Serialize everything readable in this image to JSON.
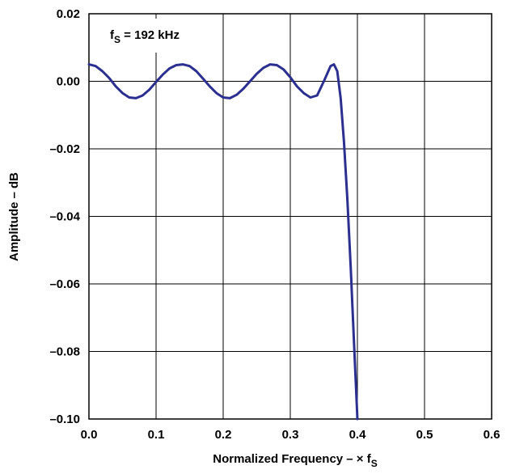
{
  "chart_data": {
    "type": "line",
    "title": "",
    "xlabel": {
      "main": "Normalized Frequency – × f",
      "sub": "S"
    },
    "ylabel": "Amplitude – dB",
    "xlim": [
      0.0,
      0.6
    ],
    "ylim": [
      -0.1,
      0.02
    ],
    "xticks": [
      "0.0",
      "0.1",
      "0.2",
      "0.3",
      "0.4",
      "0.5",
      "0.6"
    ],
    "yticks": [
      "0.02",
      "0.00",
      "–0.02",
      "–0.04",
      "–0.06",
      "–0.08",
      "–0.10"
    ],
    "grid": true,
    "annotation": {
      "main": "f",
      "sub": "S",
      "rest": " = 192 kHz"
    },
    "line_color": "#2b2f8f",
    "series": [
      {
        "x": [
          0.0,
          0.01,
          0.02,
          0.03,
          0.04,
          0.05,
          0.06,
          0.07,
          0.08,
          0.09,
          0.1,
          0.11,
          0.12,
          0.13,
          0.14,
          0.15,
          0.16,
          0.17,
          0.18,
          0.19,
          0.2,
          0.21,
          0.22,
          0.23,
          0.24,
          0.25,
          0.26,
          0.27,
          0.28,
          0.29,
          0.3,
          0.31,
          0.32,
          0.33,
          0.34,
          0.35,
          0.36,
          0.365,
          0.37,
          0.375,
          0.38,
          0.385,
          0.39,
          0.395,
          0.4
        ],
        "y": [
          0.005,
          0.0045,
          0.003,
          0.001,
          -0.0015,
          -0.0035,
          -0.0048,
          -0.005,
          -0.0042,
          -0.0025,
          -0.0002,
          0.002,
          0.0038,
          0.0048,
          0.005,
          0.0045,
          0.003,
          0.0008,
          -0.0015,
          -0.0035,
          -0.0048,
          -0.005,
          -0.004,
          -0.0022,
          0.0,
          0.0022,
          0.004,
          0.005,
          0.0048,
          0.0035,
          0.0012,
          -0.0015,
          -0.0035,
          -0.0048,
          -0.0042,
          0.0,
          0.0045,
          0.005,
          0.003,
          -0.005,
          -0.018,
          -0.035,
          -0.055,
          -0.078,
          -0.1
        ]
      }
    ]
  }
}
